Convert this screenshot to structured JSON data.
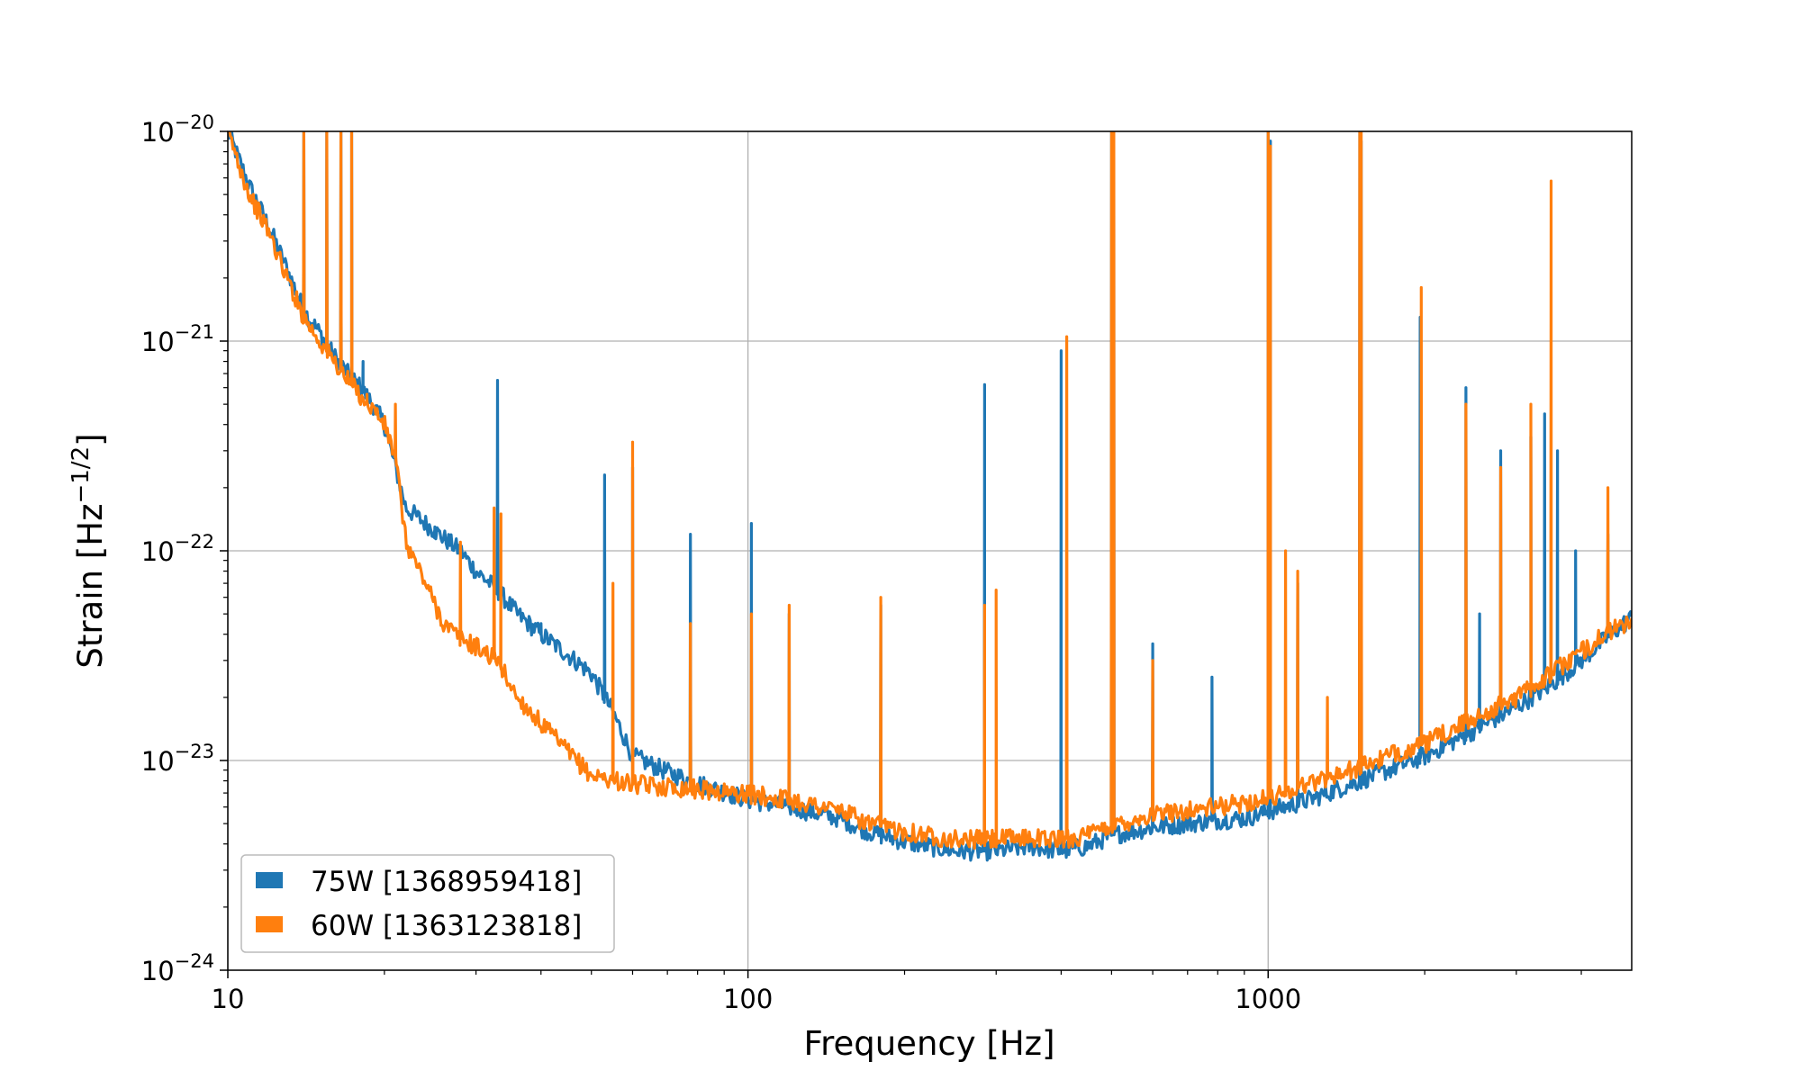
{
  "chart_data": {
    "type": "line",
    "title": "",
    "xlabel": "Frequency [Hz]",
    "ylabel_main": "Strain [Hz",
    "ylabel_sup": "−1/2",
    "ylabel_close": "]",
    "x_scale": "log",
    "y_scale": "log",
    "xlim": [
      10,
      5000
    ],
    "ylim": [
      1e-24,
      1e-20
    ],
    "x_ticks": [
      {
        "value": 10,
        "label": "10"
      },
      {
        "value": 100,
        "label": "100"
      },
      {
        "value": 1000,
        "label": "1000"
      }
    ],
    "y_ticks": [
      {
        "value": 1e-24,
        "base": "10",
        "exp": "−24"
      },
      {
        "value": 1e-23,
        "base": "10",
        "exp": "−23"
      },
      {
        "value": 1e-22,
        "base": "10",
        "exp": "−22"
      },
      {
        "value": 1e-21,
        "base": "10",
        "exp": "−21"
      },
      {
        "value": 1e-20,
        "base": "10",
        "exp": "−20"
      }
    ],
    "grid": true,
    "legend_position": "lower-left",
    "series": [
      {
        "name": "75W [1368959418]",
        "color": "#1f77b4",
        "baseline": [
          [
            10,
            1e-20
          ],
          [
            11,
            5.5e-21
          ],
          [
            12,
            3.5e-21
          ],
          [
            13,
            2.2e-21
          ],
          [
            14,
            1.4e-21
          ],
          [
            15,
            1.1e-21
          ],
          [
            16,
            8.5e-22
          ],
          [
            17,
            7e-22
          ],
          [
            18,
            6e-22
          ],
          [
            19,
            5e-22
          ],
          [
            20,
            4e-22
          ],
          [
            21,
            2.5e-22
          ],
          [
            22,
            1.6e-22
          ],
          [
            24,
            1.35e-22
          ],
          [
            26,
            1.15e-22
          ],
          [
            28,
            1e-22
          ],
          [
            30,
            8e-23
          ],
          [
            33,
            6.5e-23
          ],
          [
            36,
            5e-23
          ],
          [
            40,
            4e-23
          ],
          [
            45,
            3.2e-23
          ],
          [
            50,
            2.6e-23
          ],
          [
            55,
            1.7e-23
          ],
          [
            60,
            1.05e-23
          ],
          [
            70,
            8.8e-24
          ],
          [
            80,
            7.8e-24
          ],
          [
            100,
            6.5e-24
          ],
          [
            120,
            6e-24
          ],
          [
            150,
            5.3e-24
          ],
          [
            170,
            4.6e-24
          ],
          [
            200,
            4.1e-24
          ],
          [
            250,
            3.7e-24
          ],
          [
            300,
            3.7e-24
          ],
          [
            350,
            3.9e-24
          ],
          [
            400,
            3.7e-24
          ],
          [
            450,
            3.9e-24
          ],
          [
            500,
            4.4e-24
          ],
          [
            600,
            4.8e-24
          ],
          [
            700,
            5e-24
          ],
          [
            800,
            5.2e-24
          ],
          [
            900,
            5.3e-24
          ],
          [
            1000,
            5.7e-24
          ],
          [
            1200,
            6.5e-24
          ],
          [
            1500,
            8e-24
          ],
          [
            1800,
            9.5e-24
          ],
          [
            2000,
            1.05e-23
          ],
          [
            2500,
            1.4e-23
          ],
          [
            3000,
            1.8e-23
          ],
          [
            3500,
            2.3e-23
          ],
          [
            4000,
            3e-23
          ],
          [
            4500,
            3.9e-23
          ],
          [
            5000,
            4.8e-23
          ]
        ],
        "peaks": [
          [
            14,
            1e-20
          ],
          [
            15.5,
            1e-20
          ],
          [
            16.5,
            1e-20
          ],
          [
            17.3,
            1e-20
          ],
          [
            18.2,
            8e-22
          ],
          [
            25,
            1.3e-22
          ],
          [
            33,
            6.5e-22
          ],
          [
            40,
            4.5e-23
          ],
          [
            53,
            2.3e-22
          ],
          [
            60,
            2.5e-22
          ],
          [
            77.5,
            1.2e-22
          ],
          [
            101.5,
            1.35e-22
          ],
          [
            120,
            5e-23
          ],
          [
            180,
            5.5e-23
          ],
          [
            285,
            6.2e-22
          ],
          [
            400,
            9e-22
          ],
          [
            500,
            1e-20
          ],
          [
            505,
            9e-21
          ],
          [
            600,
            3.6e-23
          ],
          [
            780,
            2.5e-23
          ],
          [
            1000,
            1e-20
          ],
          [
            1010,
            9e-21
          ],
          [
            1140,
            7e-23
          ],
          [
            1500,
            1e-20
          ],
          [
            1510,
            9e-21
          ],
          [
            1960,
            1.3e-21
          ],
          [
            2400,
            6e-22
          ],
          [
            2550,
            5e-23
          ],
          [
            2800,
            3e-22
          ],
          [
            3200,
            3.5e-22
          ],
          [
            3400,
            4.5e-22
          ],
          [
            3600,
            3e-22
          ],
          [
            3900,
            1e-22
          ],
          [
            4500,
            1.2e-22
          ]
        ]
      },
      {
        "name": "60W [1363123818]",
        "color": "#ff7f0e",
        "baseline": [
          [
            10,
            1e-20
          ],
          [
            11,
            5e-21
          ],
          [
            12,
            3.3e-21
          ],
          [
            13,
            2e-21
          ],
          [
            14,
            1.3e-21
          ],
          [
            15,
            1e-21
          ],
          [
            16,
            8e-22
          ],
          [
            17,
            6.5e-22
          ],
          [
            18,
            5.5e-22
          ],
          [
            19,
            4.8e-22
          ],
          [
            20,
            4e-22
          ],
          [
            21,
            2.8e-22
          ],
          [
            22,
            1.1e-22
          ],
          [
            24,
            7e-23
          ],
          [
            26,
            4.5e-23
          ],
          [
            28,
            3.8e-23
          ],
          [
            30,
            3.5e-23
          ],
          [
            33,
            3e-23
          ],
          [
            36,
            2e-23
          ],
          [
            40,
            1.5e-23
          ],
          [
            45,
            1.1e-23
          ],
          [
            50,
            8.5e-24
          ],
          [
            60,
            7.7e-24
          ],
          [
            70,
            7.5e-24
          ],
          [
            80,
            7.3e-24
          ],
          [
            100,
            6.9e-24
          ],
          [
            120,
            6.5e-24
          ],
          [
            150,
            5.8e-24
          ],
          [
            170,
            5e-24
          ],
          [
            200,
            4.6e-24
          ],
          [
            250,
            4.2e-24
          ],
          [
            300,
            4.2e-24
          ],
          [
            350,
            4.3e-24
          ],
          [
            400,
            4.2e-24
          ],
          [
            450,
            4.4e-24
          ],
          [
            500,
            4.9e-24
          ],
          [
            600,
            5.5e-24
          ],
          [
            700,
            5.8e-24
          ],
          [
            800,
            6e-24
          ],
          [
            900,
            6.3e-24
          ],
          [
            1000,
            6.6e-24
          ],
          [
            1200,
            7.8e-24
          ],
          [
            1500,
            9.3e-24
          ],
          [
            1800,
            1.1e-23
          ],
          [
            2000,
            1.2e-23
          ],
          [
            2500,
            1.6e-23
          ],
          [
            3000,
            2e-23
          ],
          [
            3500,
            2.6e-23
          ],
          [
            4000,
            3.3e-23
          ],
          [
            4500,
            4.1e-23
          ],
          [
            5000,
            4.6e-23
          ]
        ],
        "peaks": [
          [
            14,
            1e-20
          ],
          [
            15.5,
            1e-20
          ],
          [
            16.5,
            1e-20
          ],
          [
            17.3,
            1e-20
          ],
          [
            18.5,
            5e-22
          ],
          [
            21,
            5e-22
          ],
          [
            28,
            1.1e-22
          ],
          [
            32.5,
            1.6e-22
          ],
          [
            33.5,
            1.5e-22
          ],
          [
            55,
            7e-23
          ],
          [
            60,
            3.3e-22
          ],
          [
            77.5,
            4.5e-23
          ],
          [
            101.5,
            5e-23
          ],
          [
            120,
            5.5e-23
          ],
          [
            180,
            6e-23
          ],
          [
            285,
            5.5e-23
          ],
          [
            300,
            6.5e-23
          ],
          [
            410,
            1.05e-21
          ],
          [
            500,
            1e-20
          ],
          [
            505,
            1e-20
          ],
          [
            600,
            3e-23
          ],
          [
            1000,
            1e-20
          ],
          [
            1010,
            8.5e-21
          ],
          [
            1080,
            1e-22
          ],
          [
            1140,
            8e-23
          ],
          [
            1300,
            2e-23
          ],
          [
            1500,
            1e-20
          ],
          [
            1510,
            1e-20
          ],
          [
            1970,
            1.8e-21
          ],
          [
            2400,
            5e-22
          ],
          [
            2800,
            2.5e-22
          ],
          [
            3200,
            5e-22
          ],
          [
            3500,
            5.8e-21
          ],
          [
            4500,
            2e-22
          ]
        ]
      }
    ]
  }
}
